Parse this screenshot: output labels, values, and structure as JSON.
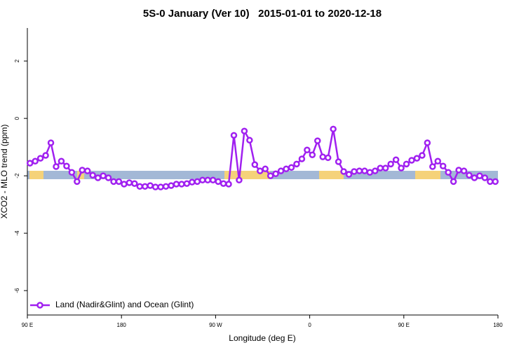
{
  "chart_data": {
    "type": "line",
    "title": "5S-0 January (Ver 10)   2015-01-01 to 2020-12-18",
    "xlabel": "Longitude (deg E)",
    "ylabel": "XCO2 - MLO trend (ppm)",
    "xlim": [
      90,
      540
    ],
    "ylim": [
      -6.85,
      3.15
    ],
    "xticks": [
      {
        "value": 90,
        "label": "90 E"
      },
      {
        "value": 180,
        "label": "180"
      },
      {
        "value": 270,
        "label": "90 W"
      },
      {
        "value": 360,
        "label": "0"
      },
      {
        "value": 450,
        "label": "90 E"
      },
      {
        "value": 540,
        "label": "180"
      }
    ],
    "yticks": [
      2,
      0,
      -2,
      -4,
      -6
    ],
    "legend": "bottom-left",
    "x": [
      92.5,
      97.5,
      102.5,
      107.5,
      112.5,
      117.5,
      122.5,
      127.5,
      132.5,
      137.5,
      142.5,
      147.5,
      152.5,
      157.5,
      162.5,
      167.5,
      172.5,
      177.5,
      182.5,
      187.5,
      192.5,
      197.5,
      202.5,
      207.5,
      212.5,
      217.5,
      222.5,
      227.5,
      232.5,
      237.5,
      242.5,
      247.5,
      252.5,
      257.5,
      262.5,
      267.5,
      272.5,
      277.5,
      282.5,
      287.5,
      292.5,
      297.5,
      302.5,
      307.5,
      312.5,
      317.5,
      322.5,
      327.5,
      332.5,
      337.5,
      342.5,
      347.5,
      352.5,
      357.5,
      362.5,
      367.5,
      372.5,
      377.5,
      382.5,
      387.5,
      392.5,
      397.5,
      402.5,
      407.5,
      412.5,
      417.5,
      422.5,
      427.5,
      432.5,
      437.5,
      442.5,
      447.5,
      452.5,
      457.5,
      462.5,
      467.5,
      472.5,
      477.5,
      482.5,
      487.5,
      492.5,
      497.5,
      502.5,
      507.5,
      512.5,
      517.5,
      522.5,
      527.5,
      532.5,
      537.5
    ],
    "series": [
      {
        "name": "Land (Nadir&Glint) and Ocean (Glint)",
        "color": "#a020f0",
        "values": [
          -1.56,
          -1.49,
          -1.39,
          -1.29,
          -0.85,
          -1.68,
          -1.49,
          -1.66,
          -1.88,
          -2.2,
          -1.8,
          -1.83,
          -1.98,
          -2.07,
          -2.0,
          -2.07,
          -2.2,
          -2.2,
          -2.29,
          -2.24,
          -2.27,
          -2.37,
          -2.37,
          -2.34,
          -2.39,
          -2.39,
          -2.37,
          -2.34,
          -2.29,
          -2.29,
          -2.27,
          -2.22,
          -2.2,
          -2.15,
          -2.15,
          -2.15,
          -2.2,
          -2.27,
          -2.29,
          -0.59,
          -2.15,
          -0.44,
          -0.76,
          -1.61,
          -1.83,
          -1.76,
          -2.0,
          -1.93,
          -1.83,
          -1.76,
          -1.71,
          -1.59,
          -1.41,
          -1.1,
          -1.27,
          -0.78,
          -1.34,
          -1.37,
          -0.37,
          -1.51,
          -1.85,
          -1.95,
          -1.85,
          -1.83,
          -1.83,
          -1.88,
          -1.83,
          -1.73,
          -1.73,
          -1.59,
          -1.44,
          -1.73,
          -1.59,
          -1.46,
          -1.39,
          -1.29,
          -0.85,
          -1.68,
          -1.49,
          -1.66,
          -1.88,
          -2.2,
          -1.8,
          -1.83,
          -1.98,
          -2.07,
          -2.0,
          -2.07,
          -2.2,
          -2.2
        ]
      }
    ]
  }
}
